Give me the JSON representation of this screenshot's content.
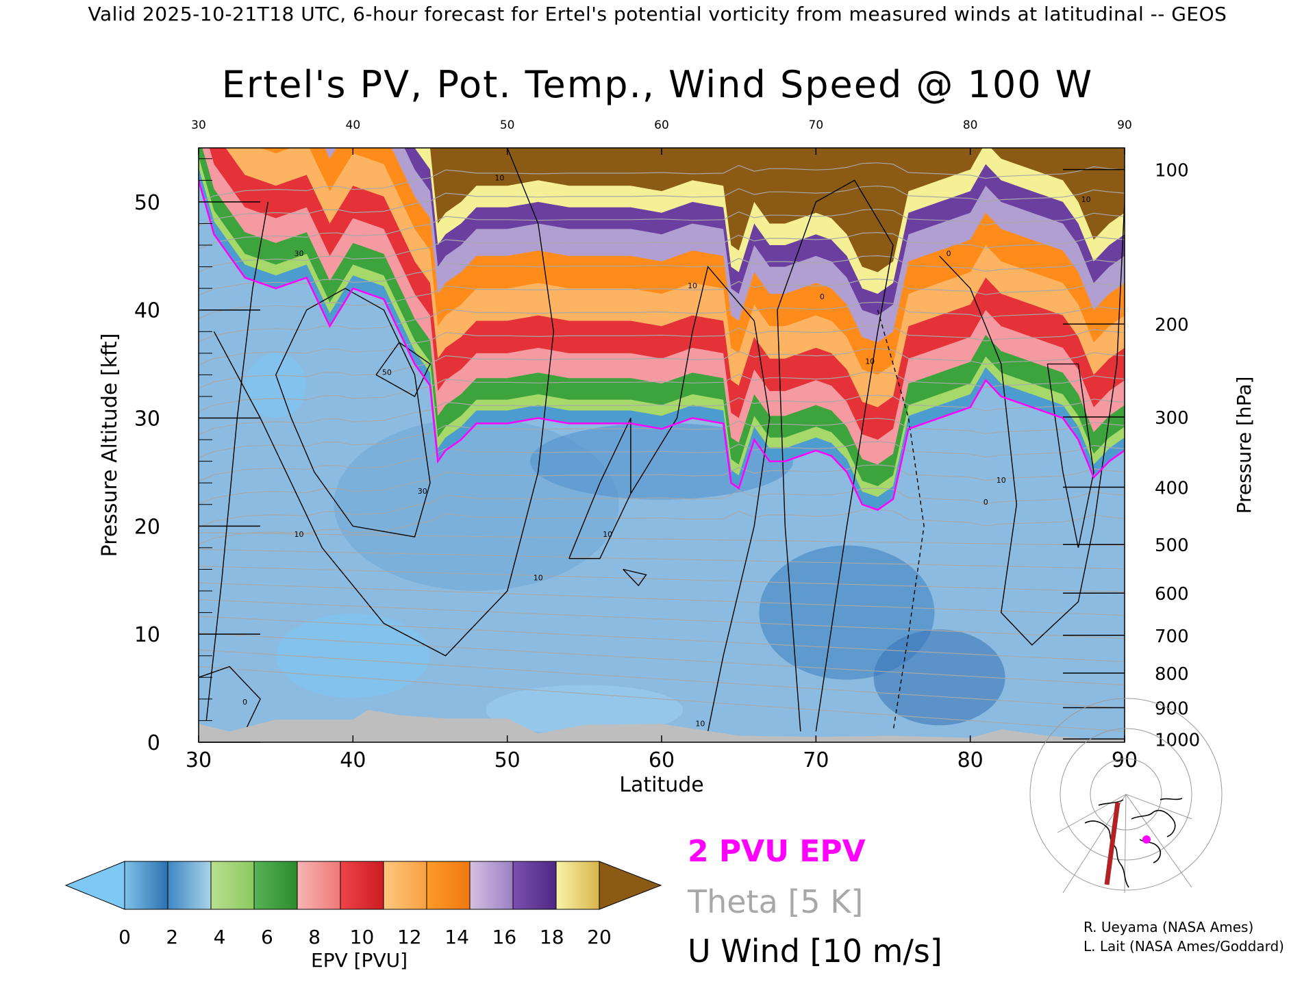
{
  "header": {
    "line": "Valid 2025-10-21T18 UTC, 6-hour forecast for Ertel's potential vorticity from measured winds at latitudinal -- GEOS"
  },
  "chart_data": {
    "type": "heatmap",
    "title": "Ertel's PV, Pot. Temp., Wind Speed @ 100 W",
    "xlabel": "Latitude",
    "ylabel": "Pressure Altitude [kft]",
    "y2label": "Pressure [hPa]",
    "xlim": [
      30,
      90
    ],
    "ylim": [
      0,
      55
    ],
    "x_ticks": [
      30,
      40,
      50,
      60,
      70,
      80,
      90
    ],
    "y_ticks": [
      0,
      10,
      20,
      30,
      40,
      50
    ],
    "pressure_ticks": [
      {
        "label": "100",
        "kft": 53.0
      },
      {
        "label": "200",
        "kft": 38.7
      },
      {
        "label": "300",
        "kft": 30.1
      },
      {
        "label": "400",
        "kft": 23.6
      },
      {
        "label": "500",
        "kft": 18.3
      },
      {
        "label": "600",
        "kft": 13.8
      },
      {
        "label": "700",
        "kft": 9.9
      },
      {
        "label": "800",
        "kft": 6.4
      },
      {
        "label": "900",
        "kft": 3.2
      },
      {
        "label": "1000",
        "kft": 0.3
      }
    ],
    "pv2_tropopause": {
      "lat": [
        30,
        31,
        32,
        33,
        35,
        37,
        38.5,
        40,
        42,
        43,
        44,
        45,
        45.5,
        46,
        47,
        48,
        50,
        52,
        54,
        56,
        58,
        60,
        62,
        64,
        64.5,
        65,
        66,
        67,
        68,
        70,
        71,
        72,
        73,
        74,
        75,
        76,
        78,
        80,
        81,
        82,
        84,
        86,
        87,
        88,
        89,
        90
      ],
      "kft": [
        52,
        47,
        45,
        43,
        42,
        43,
        38.5,
        42,
        41,
        38,
        35,
        33,
        26,
        27,
        28,
        29.5,
        29.5,
        30,
        29.5,
        29.5,
        29.5,
        29,
        30,
        29.5,
        24,
        23.5,
        28,
        26,
        26,
        27,
        26.5,
        25,
        22,
        21.5,
        22.5,
        29,
        30,
        31,
        33.5,
        32,
        31,
        30,
        28,
        24.5,
        26,
        27
      ]
    },
    "pv_bands": [
      {
        "pvu": 2,
        "color": "#4d9cd0"
      },
      {
        "pvu": 3,
        "color": "#a6d96a"
      },
      {
        "pvu": 5,
        "color": "#3da33d"
      },
      {
        "pvu": 7,
        "color": "#f59aa0"
      },
      {
        "pvu": 9,
        "color": "#e53238"
      },
      {
        "pvu": 11,
        "color": "#fdb462"
      },
      {
        "pvu": 13,
        "color": "#ff8c1a"
      },
      {
        "pvu": 15,
        "color": "#b09fd0"
      },
      {
        "pvu": 17,
        "color": "#6b3fa0"
      },
      {
        "pvu": 19,
        "color": "#f5f096"
      },
      {
        "pvu": 21,
        "color": "#8b5a14"
      }
    ],
    "theta_k": [
      290,
      295,
      300,
      305,
      310,
      315,
      320,
      325,
      330,
      335,
      340,
      345,
      350,
      355,
      360,
      365,
      370,
      375,
      380,
      385,
      390,
      395,
      400,
      410,
      420
    ],
    "u_wind_labels": [
      {
        "text": "10",
        "lat": 36.5,
        "kft": 19
      },
      {
        "text": "30",
        "lat": 36.5,
        "kft": 45
      },
      {
        "text": "50",
        "lat": 42.2,
        "kft": 34
      },
      {
        "text": "30",
        "lat": 44.5,
        "kft": 23
      },
      {
        "text": "10",
        "lat": 49.5,
        "kft": 52
      },
      {
        "text": "10",
        "lat": 56.5,
        "kft": 19
      },
      {
        "text": "10",
        "lat": 52,
        "kft": 15
      },
      {
        "text": "10",
        "lat": 62,
        "kft": 42
      },
      {
        "text": "10",
        "lat": 62.5,
        "kft": 1.5
      },
      {
        "text": "0",
        "lat": 70.4,
        "kft": 41
      },
      {
        "text": "10",
        "lat": 73.5,
        "kft": 35
      },
      {
        "text": "0",
        "lat": 78.6,
        "kft": 45
      },
      {
        "text": "10",
        "lat": 82,
        "kft": 24
      },
      {
        "text": "0",
        "lat": 81,
        "kft": 22
      },
      {
        "text": "0",
        "lat": 33,
        "kft": 3.5
      },
      {
        "text": "10",
        "lat": 87.5,
        "kft": 50
      }
    ],
    "colorbar": {
      "label": "EPV [PVU]",
      "ticks": [
        0,
        2,
        4,
        6,
        8,
        10,
        12,
        14,
        16,
        18,
        20
      ],
      "under_color": "#7ec8f5",
      "over_color": "#8b5a14",
      "segments": [
        [
          "#7ec0e8",
          "#2c72b0"
        ],
        [
          "#3f86c2",
          "#a8d4e8"
        ],
        [
          "#b8e090",
          "#8cc860"
        ],
        [
          "#56b456",
          "#2c8c2c"
        ],
        [
          "#f8b4b4",
          "#f07878"
        ],
        [
          "#ee4448",
          "#cc1c22"
        ],
        [
          "#fdc880",
          "#f8a040"
        ],
        [
          "#ff9a2a",
          "#f07810"
        ],
        [
          "#d4c0e0",
          "#9a80c4"
        ],
        [
          "#7c50b0",
          "#4e2884"
        ],
        [
          "#f8f4a8",
          "#d8b44c"
        ]
      ]
    }
  },
  "legend": {
    "epv": "2 PVU EPV",
    "theta": "Theta [5 K]",
    "uwind": "U Wind [10 m/s]"
  },
  "credits": {
    "line1": "R. Ueyama (NASA Ames)",
    "line2": "L. Lait (NASA Ames/Goddard)"
  },
  "colors": {
    "tropopause": "#ff00ff",
    "theta": "#a8a8a8",
    "terrain": "#bebebe",
    "background": "#8bbbe0"
  }
}
